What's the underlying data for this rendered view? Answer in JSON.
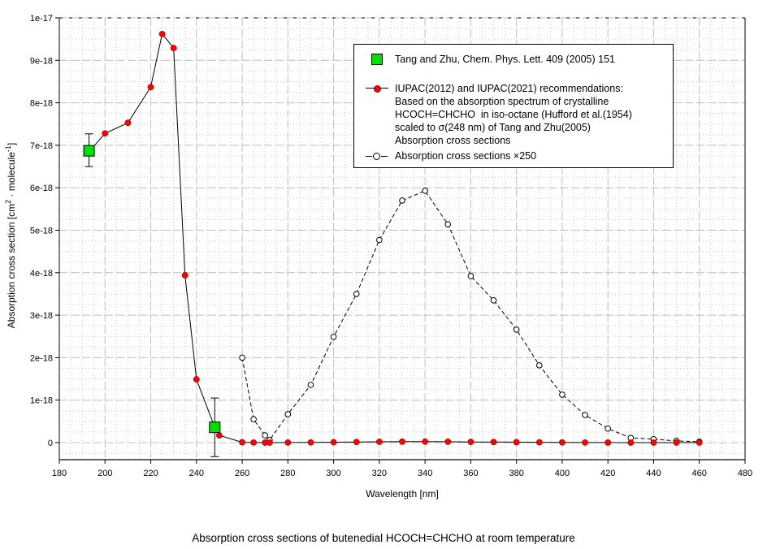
{
  "chart_data": {
    "type": "line",
    "title": "Absorption cross sections of butenedial HCOCH=CHCHO at room temperature",
    "xlabel": "Wavelength [nm]",
    "ylabel": "Absorption cross section [cm2 · molecule-1]",
    "xlim": [
      180,
      480
    ],
    "ylim": [
      -4e-19,
      1e-17
    ],
    "x_ticks": [
      "180",
      "200",
      "220",
      "240",
      "260",
      "280",
      "300",
      "320",
      "340",
      "360",
      "380",
      "400",
      "420",
      "440",
      "460",
      "480"
    ],
    "y_ticks": [
      "0",
      "1e-18",
      "2e-18",
      "3e-18",
      "4e-18",
      "5e-18",
      "6e-18",
      "7e-18",
      "8e-18",
      "9e-18",
      "1e-17"
    ],
    "grid": true,
    "legend_position": "upper right (inset box)",
    "series": [
      {
        "name": "Tang and Zhu, Chem. Phys. Lett. 409 (2005) 151",
        "marker": "green square with error bars",
        "color": "#00e000",
        "x": [
          193,
          248
        ],
        "y": [
          6.87e-18,
          3.6e-19
        ],
        "error_low": [
          6.5e-18,
          -3.3e-19
        ],
        "error_high": [
          7.27e-18,
          1.05e-18
        ]
      },
      {
        "name": "IUPAC(2012) and IUPAC(2021) recommendations",
        "marker": "red filled circle, solid line",
        "color": "#ff0000",
        "x": [
          193,
          200,
          210,
          220,
          225,
          230,
          235,
          240,
          248,
          250,
          260,
          265,
          270,
          272,
          280,
          290,
          300,
          310,
          320,
          330,
          340,
          350,
          360,
          370,
          380,
          390,
          400,
          410,
          420,
          430,
          440,
          450,
          460
        ],
        "y": [
          6.85e-18,
          7.28e-18,
          7.53e-18,
          8.37e-18,
          9.62e-18,
          9.29e-18,
          3.94e-18,
          1.49e-18,
          3.6e-19,
          1.7e-19,
          8e-21,
          2.2e-21,
          7e-22,
          2.4e-22,
          2.7e-21,
          5.4e-21,
          1e-20,
          1.4e-20,
          1.9e-20,
          2.28e-20,
          2.37e-20,
          2.06e-20,
          1.57e-20,
          1.34e-20,
          1.06e-20,
          7.3e-21,
          4.5e-21,
          2.6e-21,
          1.3e-21,
          4.4e-22,
          3.2e-22,
          1.6e-22,
          8e-23
        ]
      },
      {
        "name": "Absorption cross sections ×250",
        "marker": "open circle, dashed line",
        "color": "#000000",
        "x": [
          260,
          265,
          270,
          272,
          280,
          290,
          300,
          310,
          320,
          330,
          340,
          350,
          360,
          370,
          380,
          390,
          400,
          410,
          420,
          430,
          440,
          450,
          460
        ],
        "y": [
          2e-18,
          5.5e-19,
          1.7e-19,
          6e-20,
          6.7e-19,
          1.36e-18,
          2.49e-18,
          3.5e-18,
          4.77e-18,
          5.7e-18,
          5.93e-18,
          5.14e-18,
          3.92e-18,
          3.35e-18,
          2.66e-18,
          1.82e-18,
          1.13e-18,
          6.5e-19,
          3.3e-19,
          1.1e-19,
          8e-20,
          4e-20,
          2e-20
        ]
      }
    ]
  },
  "legend": {
    "items": [
      {
        "label": "Tang and Zhu, Chem. Phys. Lett. 409 (2005) 151"
      },
      {
        "label": "IUPAC(2012) and IUPAC(2021) recommendations:\nBased on the absorption spectrum of crystalline\nHCOCH=CHCHO  in iso-octane (Hufford et al.(1954)\nscaled to σ(248 nm) of Tang and Zhu(2005)\nAbsorption cross sections"
      },
      {
        "label": "Absorption cross sections ×250"
      }
    ]
  },
  "axes": {
    "xlabel": "Wavelength [nm]",
    "ylabel_main": "Absorption cross section [cm",
    "ylabel_sup1": "2",
    "ylabel_mid": " · molecule",
    "ylabel_sup2": "-1",
    "ylabel_end": "]"
  },
  "caption": "Absorption cross sections of butenedial HCOCH=CHCHO at room temperature",
  "colors": {
    "red_marker": "#ff0000",
    "green_marker": "#00e000",
    "grid_major": "#c0c0c0",
    "grid_minor": "#c8c8c8"
  }
}
